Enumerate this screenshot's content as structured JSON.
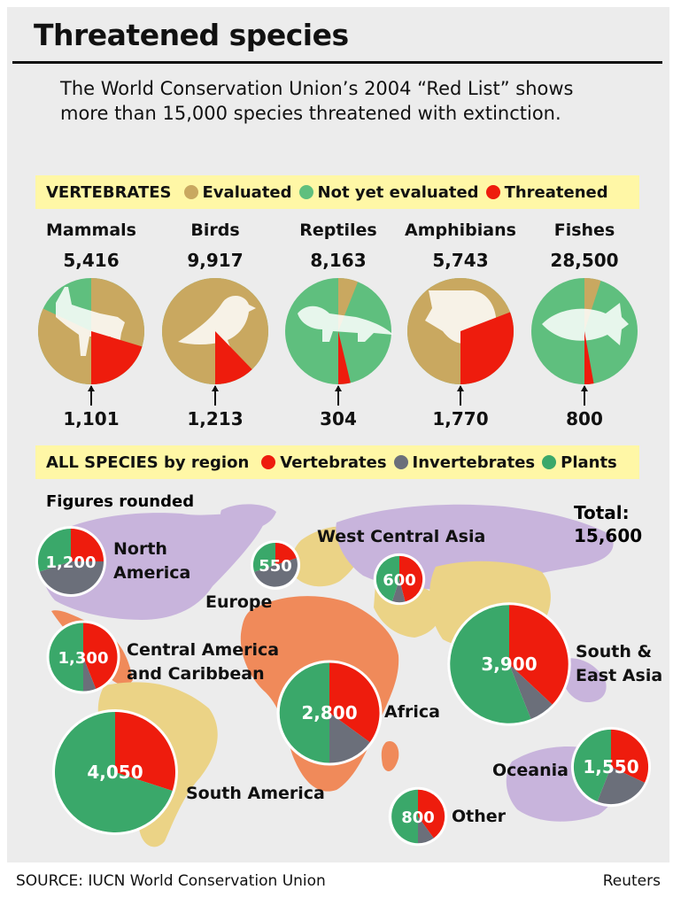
{
  "title": "Threatened species",
  "intro": "The World Conservation Union’s 2004 “Red List” shows more than 15,000 species threatened with extinction.",
  "colors": {
    "evaluated": "#c9a860",
    "not_evaluated": "#5fbf7e",
    "threatened": "#ee1c0d",
    "vertebrates": "#ee1c0d",
    "invertebrates": "#6b6f7a",
    "plants": "#3aa86a",
    "land_purple": "#c8b4dc",
    "land_yellow": "#ebd386",
    "land_orange": "#f08a5a",
    "legend_bar": "#fff7a6"
  },
  "source": "SOURCE: IUCN World Conservation Union",
  "credit": "Reuters",
  "chart_data": [
    {
      "type": "pie",
      "header": "VERTEBRATES",
      "legend": [
        "Evaluated",
        "Not yet evaluated",
        "Threatened"
      ],
      "groups": [
        {
          "name": "Mammals",
          "total_label": "5,416",
          "total": 5416,
          "threatened_label": "1,101",
          "threatened": 1101,
          "evaluated_share": 0.82,
          "silhouette": "deer-icon"
        },
        {
          "name": "Birds",
          "total_label": "9,917",
          "total": 9917,
          "threatened_label": "1,213",
          "threatened": 1213,
          "evaluated_share": 1.0,
          "silhouette": "bird-icon"
        },
        {
          "name": "Reptiles",
          "total_label": "8,163",
          "total": 8163,
          "threatened_label": "304",
          "threatened": 304,
          "evaluated_share": 0.06,
          "silhouette": "iguana-icon"
        },
        {
          "name": "Amphibians",
          "total_label": "5,743",
          "total": 5743,
          "threatened_label": "1,770",
          "threatened": 1770,
          "evaluated_share": 1.0,
          "silhouette": "frog-icon"
        },
        {
          "name": "Fishes",
          "total_label": "28,500",
          "total": 28500,
          "threatened_label": "800",
          "threatened": 800,
          "evaluated_share": 0.05,
          "silhouette": "fish-icon"
        }
      ]
    },
    {
      "type": "pie",
      "header": "ALL SPECIES",
      "header_suffix": "by region",
      "legend": [
        "Vertebrates",
        "Invertebrates",
        "Plants"
      ],
      "note": "Figures rounded",
      "total_label": "Total:",
      "total_value": "15,600",
      "regions": [
        {
          "name": "North America",
          "name_lines": [
            "North",
            "America"
          ],
          "total_label": "1,200",
          "total": 1200,
          "shares": [
            0.25,
            0.45,
            0.3
          ]
        },
        {
          "name": "Europe",
          "name_lines": [
            "Europe"
          ],
          "total_label": "550",
          "total": 550,
          "shares": [
            0.2,
            0.5,
            0.3
          ]
        },
        {
          "name": "West Central Asia",
          "name_lines": [
            "West Central Asia"
          ],
          "total_label": "600",
          "total": 600,
          "shares": [
            0.46,
            0.09,
            0.45
          ]
        },
        {
          "name": "Central America and Caribbean",
          "name_lines": [
            "Central America",
            "and Caribbean"
          ],
          "total_label": "1,300",
          "total": 1300,
          "shares": [
            0.44,
            0.06,
            0.5
          ]
        },
        {
          "name": "South & East Asia",
          "name_lines": [
            "South &",
            "East Asia"
          ],
          "total_label": "3,900",
          "total": 3900,
          "shares": [
            0.37,
            0.07,
            0.56
          ]
        },
        {
          "name": "Africa",
          "name_lines": [
            "Africa"
          ],
          "total_label": "2,800",
          "total": 2800,
          "shares": [
            0.35,
            0.15,
            0.5
          ]
        },
        {
          "name": "South America",
          "name_lines": [
            "South America"
          ],
          "total_label": "4,050",
          "total": 4050,
          "shares": [
            0.3,
            0.0,
            0.7
          ]
        },
        {
          "name": "Oceania",
          "name_lines": [
            "Oceania"
          ],
          "total_label": "1,550",
          "total": 1550,
          "shares": [
            0.32,
            0.24,
            0.44
          ]
        },
        {
          "name": "Other",
          "name_lines": [
            "Other"
          ],
          "total_label": "800",
          "total": 800,
          "shares": [
            0.4,
            0.1,
            0.5
          ]
        }
      ]
    }
  ]
}
